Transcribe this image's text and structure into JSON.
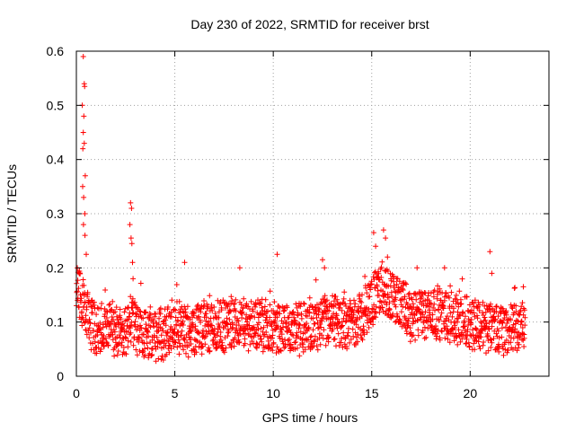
{
  "chart_data": {
    "type": "scatter",
    "title": "Day 230 of 2022, SRMTID for receiver brst",
    "xlabel": "GPS time / hours",
    "ylabel": "SRMTID / TECUs",
    "xlim": [
      0,
      24
    ],
    "ylim": [
      0,
      0.6
    ],
    "xticks": [
      0,
      5,
      10,
      15,
      20
    ],
    "yticks": [
      0,
      0.1,
      0.2,
      0.3,
      0.4,
      0.5,
      0.6
    ],
    "grid": true,
    "marker": "+",
    "color": "#ff0000",
    "series": [
      {
        "name": "SRMTID",
        "profile": {
          "t": [
            0.0,
            0.1,
            0.2,
            0.3,
            0.5,
            0.7,
            1.0,
            1.5,
            2.0,
            2.5,
            2.8,
            3.0,
            3.5,
            4.0,
            4.5,
            5.0,
            5.5,
            6.0,
            7.0,
            8.0,
            9.0,
            10.0,
            11.0,
            12.0,
            13.0,
            14.0,
            14.5,
            15.0,
            15.5,
            16.0,
            16.5,
            17.0,
            18.0,
            19.0,
            20.0,
            21.0,
            22.0,
            22.8
          ],
          "mean": [
            0.16,
            0.17,
            0.15,
            0.14,
            0.12,
            0.1,
            0.09,
            0.09,
            0.08,
            0.09,
            0.1,
            0.09,
            0.08,
            0.075,
            0.08,
            0.09,
            0.085,
            0.09,
            0.09,
            0.095,
            0.1,
            0.09,
            0.085,
            0.09,
            0.1,
            0.1,
            0.11,
            0.14,
            0.16,
            0.15,
            0.13,
            0.11,
            0.12,
            0.11,
            0.1,
            0.09,
            0.085,
            0.09
          ],
          "spread": 0.045
        },
        "spikes": [
          {
            "x": 0.35,
            "y": 0.59
          },
          {
            "x": 0.4,
            "y": 0.54
          },
          {
            "x": 0.42,
            "y": 0.535
          },
          {
            "x": 0.3,
            "y": 0.5
          },
          {
            "x": 0.38,
            "y": 0.48
          },
          {
            "x": 0.35,
            "y": 0.45
          },
          {
            "x": 0.4,
            "y": 0.43
          },
          {
            "x": 0.33,
            "y": 0.42
          },
          {
            "x": 0.45,
            "y": 0.37
          },
          {
            "x": 0.32,
            "y": 0.35
          },
          {
            "x": 0.37,
            "y": 0.33
          },
          {
            "x": 0.43,
            "y": 0.3
          },
          {
            "x": 0.36,
            "y": 0.28
          },
          {
            "x": 0.44,
            "y": 0.26
          },
          {
            "x": 0.5,
            "y": 0.225
          },
          {
            "x": 2.75,
            "y": 0.32
          },
          {
            "x": 2.8,
            "y": 0.31
          },
          {
            "x": 2.72,
            "y": 0.28
          },
          {
            "x": 2.78,
            "y": 0.255
          },
          {
            "x": 2.82,
            "y": 0.245
          },
          {
            "x": 2.85,
            "y": 0.21
          },
          {
            "x": 5.5,
            "y": 0.21
          },
          {
            "x": 8.3,
            "y": 0.2
          },
          {
            "x": 10.2,
            "y": 0.225
          },
          {
            "x": 12.5,
            "y": 0.215
          },
          {
            "x": 12.6,
            "y": 0.2
          },
          {
            "x": 15.1,
            "y": 0.265
          },
          {
            "x": 15.2,
            "y": 0.24
          },
          {
            "x": 15.6,
            "y": 0.27
          },
          {
            "x": 15.7,
            "y": 0.255
          },
          {
            "x": 15.8,
            "y": 0.22
          },
          {
            "x": 17.3,
            "y": 0.2
          },
          {
            "x": 18.7,
            "y": 0.2
          },
          {
            "x": 21.0,
            "y": 0.23
          },
          {
            "x": 21.1,
            "y": 0.19
          },
          {
            "x": 22.7,
            "y": 0.165
          }
        ]
      }
    ]
  }
}
